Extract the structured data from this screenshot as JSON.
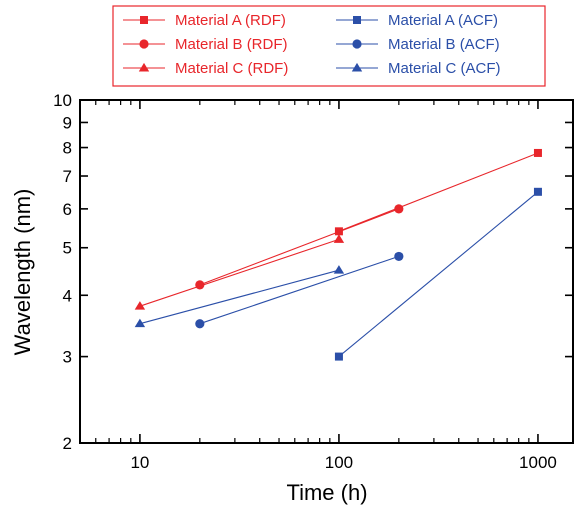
{
  "chart_data": {
    "type": "line",
    "title": "",
    "xlabel": "Time (h)",
    "ylabel": "Wavelength (nm)",
    "x_scale": "log",
    "y_scale": "log",
    "xlim": [
      5,
      1500
    ],
    "ylim": [
      2,
      10
    ],
    "x_tick_labels": [
      "10",
      "100",
      "1000"
    ],
    "y_tick_labels": [
      "2",
      "3",
      "4",
      "5",
      "6",
      "7",
      "8",
      "9",
      "10"
    ],
    "grid": false,
    "legend_position": "top",
    "series": [
      {
        "name": "Material A (RDF)",
        "color": "#e8262b",
        "marker": "square",
        "points": [
          {
            "x": 100,
            "y": 5.4
          },
          {
            "x": 1000,
            "y": 7.8
          }
        ]
      },
      {
        "name": "Material B (RDF)",
        "color": "#e8262b",
        "marker": "circle",
        "points": [
          {
            "x": 20,
            "y": 4.2
          },
          {
            "x": 200,
            "y": 6.0
          }
        ]
      },
      {
        "name": "Material C (RDF)",
        "color": "#e8262b",
        "marker": "triangle",
        "points": [
          {
            "x": 10,
            "y": 3.8
          },
          {
            "x": 100,
            "y": 5.2
          }
        ]
      },
      {
        "name": "Material A (ACF)",
        "color": "#2b4fa8",
        "marker": "square",
        "points": [
          {
            "x": 100,
            "y": 3.0
          },
          {
            "x": 1000,
            "y": 6.5
          }
        ]
      },
      {
        "name": "Material B (ACF)",
        "color": "#2b4fa8",
        "marker": "circle",
        "points": [
          {
            "x": 20,
            "y": 3.5
          },
          {
            "x": 200,
            "y": 4.8
          }
        ]
      },
      {
        "name": "Material C (ACF)",
        "color": "#2b4fa8",
        "marker": "triangle",
        "points": [
          {
            "x": 10,
            "y": 3.5
          },
          {
            "x": 100,
            "y": 4.5
          }
        ]
      }
    ]
  }
}
